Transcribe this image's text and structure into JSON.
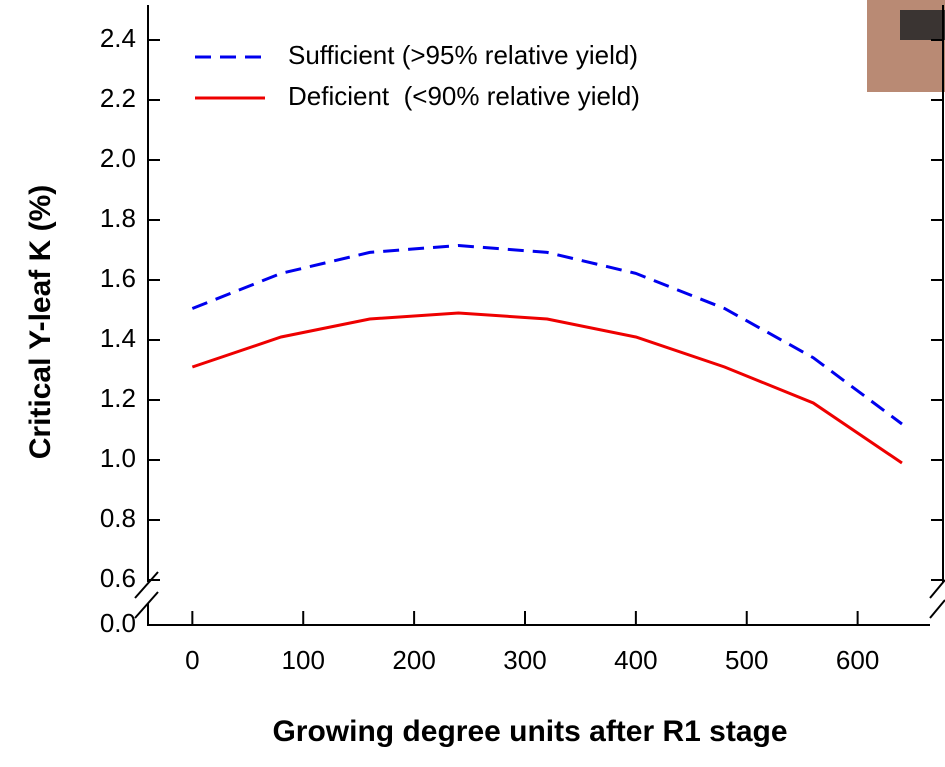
{
  "chart_data": {
    "type": "line",
    "xlabel": "Growing degree units after R1 stage",
    "ylabel": "Critical Y-leaf K (%)",
    "x": [
      0,
      80,
      160,
      240,
      320,
      400,
      480,
      560,
      640
    ],
    "series": [
      {
        "name": "Sufficient (>95% relative yield)",
        "color": "#0000ee",
        "dash": true,
        "values": [
          1.505,
          1.622,
          1.692,
          1.715,
          1.692,
          1.622,
          1.505,
          1.341,
          1.12
        ]
      },
      {
        "name": "Deficient  (<90% relative yield)",
        "color": "#ee0000",
        "dash": false,
        "values": [
          1.31,
          1.41,
          1.47,
          1.49,
          1.47,
          1.41,
          1.31,
          1.19,
          0.99
        ]
      }
    ],
    "xlim": [
      -40,
      677
    ],
    "xticks": [
      0,
      100,
      200,
      300,
      400,
      500,
      600
    ],
    "ylim": [
      0.6,
      2.5
    ],
    "yticks": [
      {
        "value": 0.0,
        "label": "0.0"
      },
      0.6,
      0.8,
      {
        "value": 1.0,
        "label": "1.0"
      },
      1.2,
      1.4,
      1.6,
      1.8,
      {
        "value": 2.0,
        "label": "2.0"
      },
      2.2,
      2.4
    ],
    "legend": "upper-left"
  }
}
